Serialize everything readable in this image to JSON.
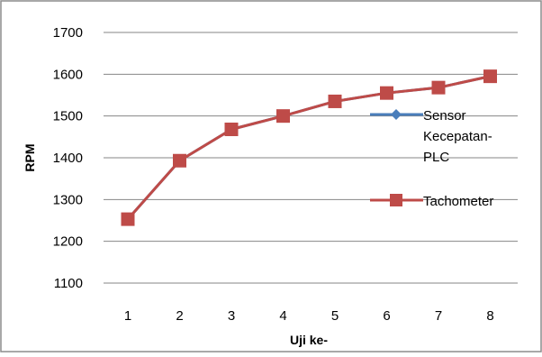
{
  "chart_data": {
    "type": "line",
    "title": "",
    "xlabel": "Uji ke-",
    "ylabel": "RPM",
    "ylim": [
      1100,
      1700
    ],
    "yticks": [
      1100,
      1200,
      1300,
      1400,
      1500,
      1600,
      1700
    ],
    "categories": [
      "1",
      "2",
      "3",
      "4",
      "5",
      "6",
      "7",
      "8"
    ],
    "grid": "horizontal",
    "legend_position": "right",
    "series": [
      {
        "name": "Sensor Kecepatan-PLC",
        "legend_lines": [
          "Sensor",
          "Kecepatan-",
          "PLC"
        ],
        "marker": "diamond",
        "color": "#4a7ebb",
        "values": [
          1253,
          1393,
          1468,
          1500,
          1535,
          1555,
          1568,
          1595
        ]
      },
      {
        "name": "Tachometer",
        "legend_lines": [
          "Tachometer"
        ],
        "marker": "square",
        "color": "#be4b48",
        "values": [
          1253,
          1393,
          1468,
          1500,
          1535,
          1555,
          1568,
          1595
        ]
      }
    ]
  }
}
